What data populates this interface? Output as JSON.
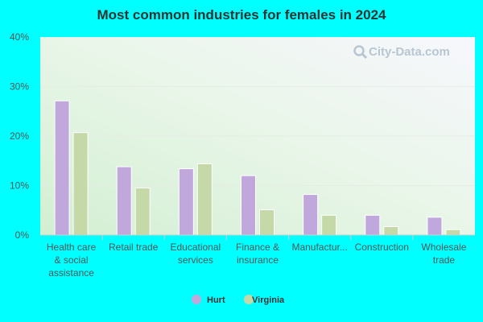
{
  "chart_data": {
    "type": "bar",
    "title": "Most common industries for females in 2024",
    "categories": [
      [
        "Health care",
        "& social",
        "assistance"
      ],
      [
        "Retail trade"
      ],
      [
        "Educational",
        "services"
      ],
      [
        "Finance &",
        "insurance"
      ],
      [
        "Manufactur..."
      ],
      [
        "Construction"
      ],
      [
        "Wholesale",
        "trade"
      ]
    ],
    "series": [
      {
        "name": "Hurt",
        "color": "#c0a8dc",
        "values": [
          27.1,
          13.8,
          13.4,
          12.0,
          8.2,
          4.0,
          3.6
        ]
      },
      {
        "name": "Virginia",
        "color": "#c5d8a8",
        "values": [
          20.7,
          9.5,
          14.4,
          5.1,
          4.0,
          1.7,
          1.1
        ]
      }
    ],
    "y_ticks": [
      "0%",
      "10%",
      "20%",
      "30%",
      "40%"
    ],
    "ylim": [
      0,
      40
    ],
    "legend_position": "bottom-center",
    "grid": true,
    "watermark": "City-Data.com",
    "watermark_icon": "magnifier-icon"
  }
}
